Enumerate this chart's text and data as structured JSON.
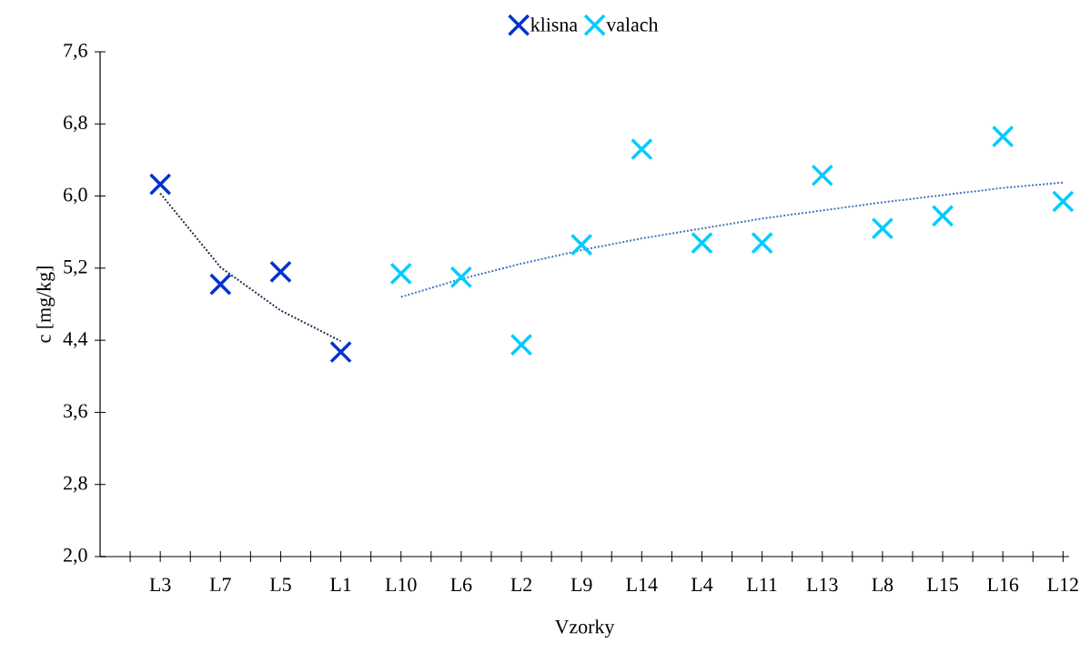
{
  "chart_data": {
    "type": "scatter",
    "xlabel": "Vzorky",
    "ylabel": "c [mg/kg]",
    "categories": [
      "L3",
      "L7",
      "L5",
      "L1",
      "L10",
      "L6",
      "L2",
      "L9",
      "L14",
      "L4",
      "L11",
      "L13",
      "L8",
      "L15",
      "L16",
      "L12"
    ],
    "series": [
      {
        "name": "klisna",
        "color": "#0033cc",
        "values": [
          6.13,
          5.02,
          5.16,
          4.27,
          null,
          null,
          null,
          null,
          null,
          null,
          null,
          null,
          null,
          null,
          null,
          null
        ]
      },
      {
        "name": "valach",
        "color": "#00ccff",
        "values": [
          null,
          null,
          null,
          null,
          5.14,
          5.1,
          4.35,
          5.46,
          6.52,
          5.48,
          5.48,
          6.23,
          5.64,
          5.78,
          6.66,
          5.94
        ]
      },
      {
        "type": "line",
        "color": "#203050",
        "line_style": "dotted",
        "marker": "none",
        "values": [
          6.03,
          5.21,
          4.73,
          4.39,
          null,
          null,
          null,
          null,
          null,
          null,
          null,
          null,
          null,
          null,
          null,
          null
        ]
      },
      {
        "type": "line",
        "color": "#4472c4",
        "line_style": "dotted",
        "marker": "none",
        "values": [
          null,
          null,
          null,
          null,
          4.88,
          5.08,
          5.25,
          5.4,
          5.53,
          5.64,
          5.75,
          5.84,
          5.93,
          6.01,
          6.09,
          6.15
        ]
      }
    ],
    "ylim": [
      2.0,
      7.6
    ],
    "yticks": [
      {
        "value": 2.0,
        "label": "2,0"
      },
      {
        "value": 2.8,
        "label": "2,8"
      },
      {
        "value": 3.6,
        "label": "3,6"
      },
      {
        "value": 4.4,
        "label": "4,4"
      },
      {
        "value": 5.2,
        "label": "5,2"
      },
      {
        "value": 6.0,
        "label": "6,0"
      },
      {
        "value": 6.8,
        "label": "6,8"
      },
      {
        "value": 7.6,
        "label": "7,6"
      }
    ],
    "grid": false,
    "legend": "top",
    "marker": "cross"
  }
}
